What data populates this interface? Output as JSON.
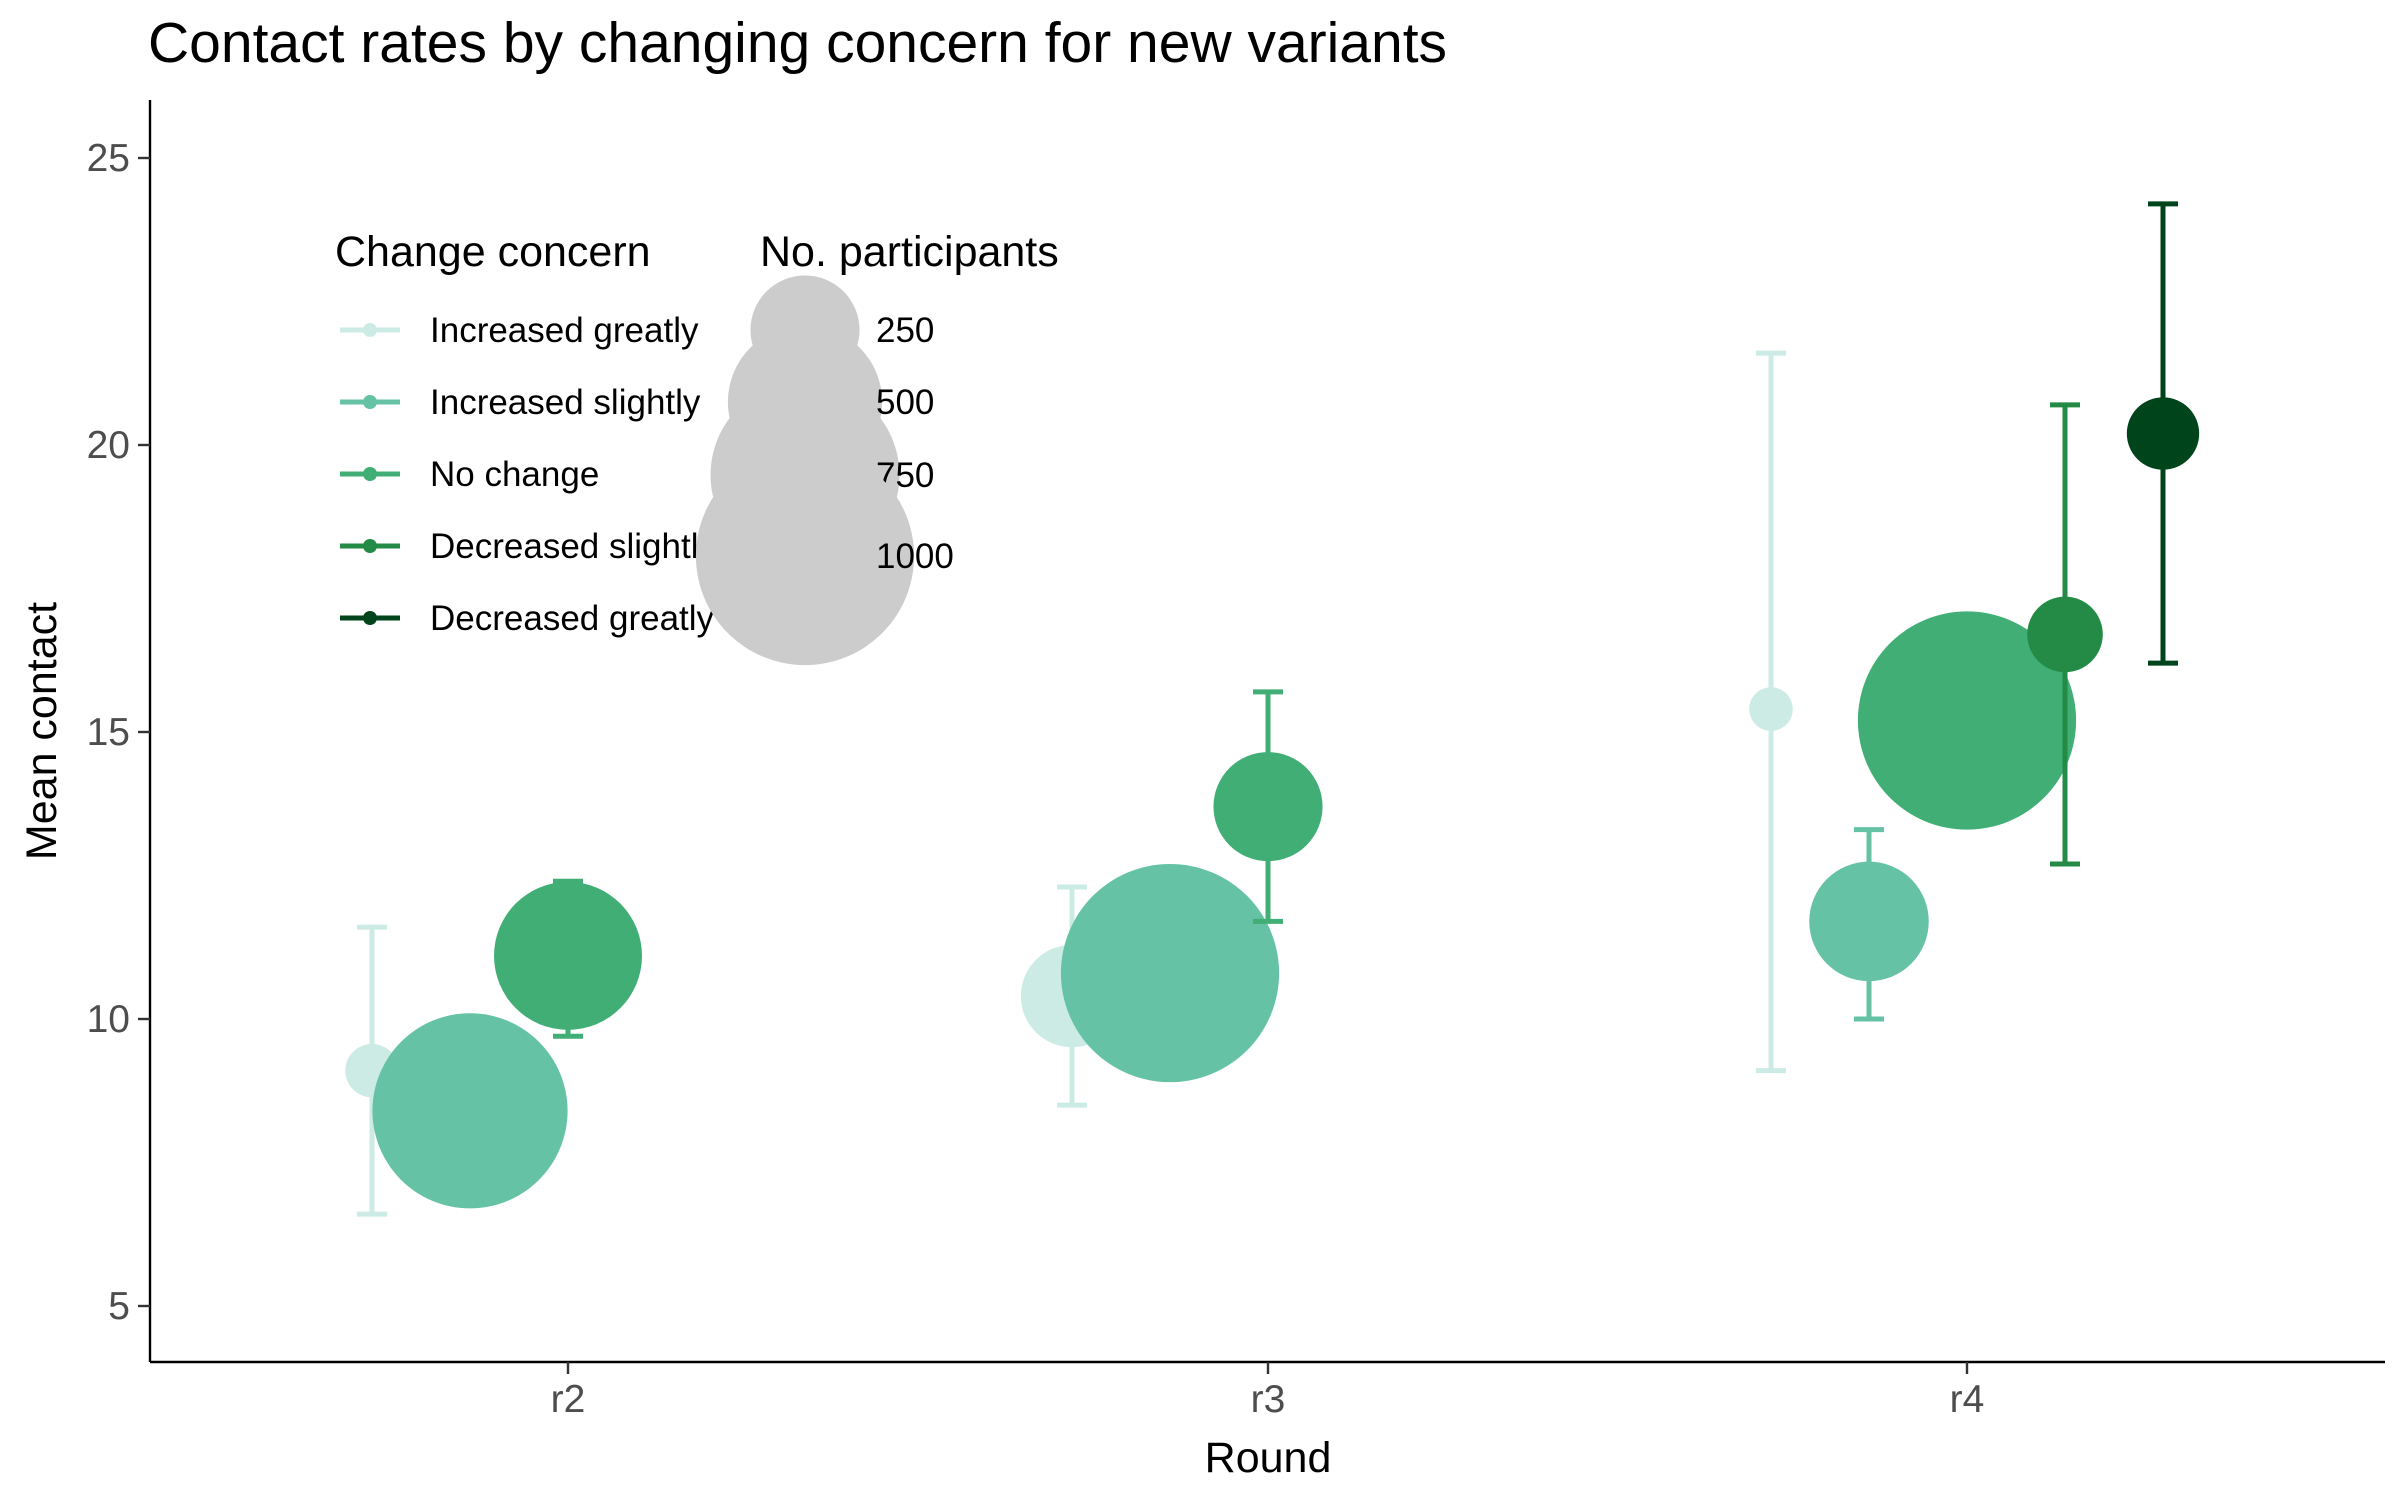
{
  "chart_data": {
    "type": "scatter",
    "title": "Contact rates by changing concern for new variants",
    "xlabel": "Round",
    "ylabel": "Mean contact",
    "categories": [
      "r2",
      "r3",
      "r4"
    ],
    "ylim": [
      4,
      26
    ],
    "yticks": [
      5,
      10,
      15,
      20,
      25
    ],
    "grid": false,
    "legend": {
      "color_title": "Change concern",
      "size_title": "No. participants",
      "size_values": [
        250,
        500,
        750,
        1000
      ]
    },
    "series": [
      {
        "name": "Increased greatly",
        "color": "#cdebe5",
        "points": [
          {
            "x": "r2",
            "y": 9.1,
            "lower": 6.6,
            "upper": 11.6,
            "n": 60
          },
          {
            "x": "r3",
            "y": 10.4,
            "lower": 8.5,
            "upper": 12.3,
            "n": 220
          },
          {
            "x": "r4",
            "y": 15.4,
            "lower": 9.1,
            "upper": 21.6,
            "n": 40
          }
        ]
      },
      {
        "name": "Increased slightly",
        "color": "#66c2a5",
        "points": [
          {
            "x": "r2",
            "y": 8.4,
            "lower": 7.5,
            "upper": 9.3,
            "n": 800
          },
          {
            "x": "r3",
            "y": 10.8,
            "lower": 9.8,
            "upper": 11.8,
            "n": 1000
          },
          {
            "x": "r4",
            "y": 11.7,
            "lower": 10.0,
            "upper": 13.3,
            "n": 300
          }
        ]
      },
      {
        "name": "No change",
        "color": "#41ae76",
        "points": [
          {
            "x": "r2",
            "y": 11.1,
            "lower": 9.7,
            "upper": 12.4,
            "n": 460
          },
          {
            "x": "r3",
            "y": 13.7,
            "lower": 11.7,
            "upper": 15.7,
            "n": 250
          },
          {
            "x": "r4",
            "y": 15.2,
            "lower": 13.7,
            "upper": 16.6,
            "n": 1000
          }
        ]
      },
      {
        "name": "Decreased slightly",
        "color": "#238b45",
        "points": [
          {
            "x": "r4",
            "y": 16.7,
            "lower": 12.7,
            "upper": 20.7,
            "n": 120
          }
        ]
      },
      {
        "name": "Decreased greatly",
        "color": "#00441b",
        "points": [
          {
            "x": "r4",
            "y": 20.2,
            "lower": 16.2,
            "upper": 24.2,
            "n": 110
          }
        ]
      }
    ],
    "dodge_positions": [
      "Increased greatly",
      "Increased slightly",
      "No change",
      "Decreased slightly",
      "Decreased greatly"
    ]
  }
}
